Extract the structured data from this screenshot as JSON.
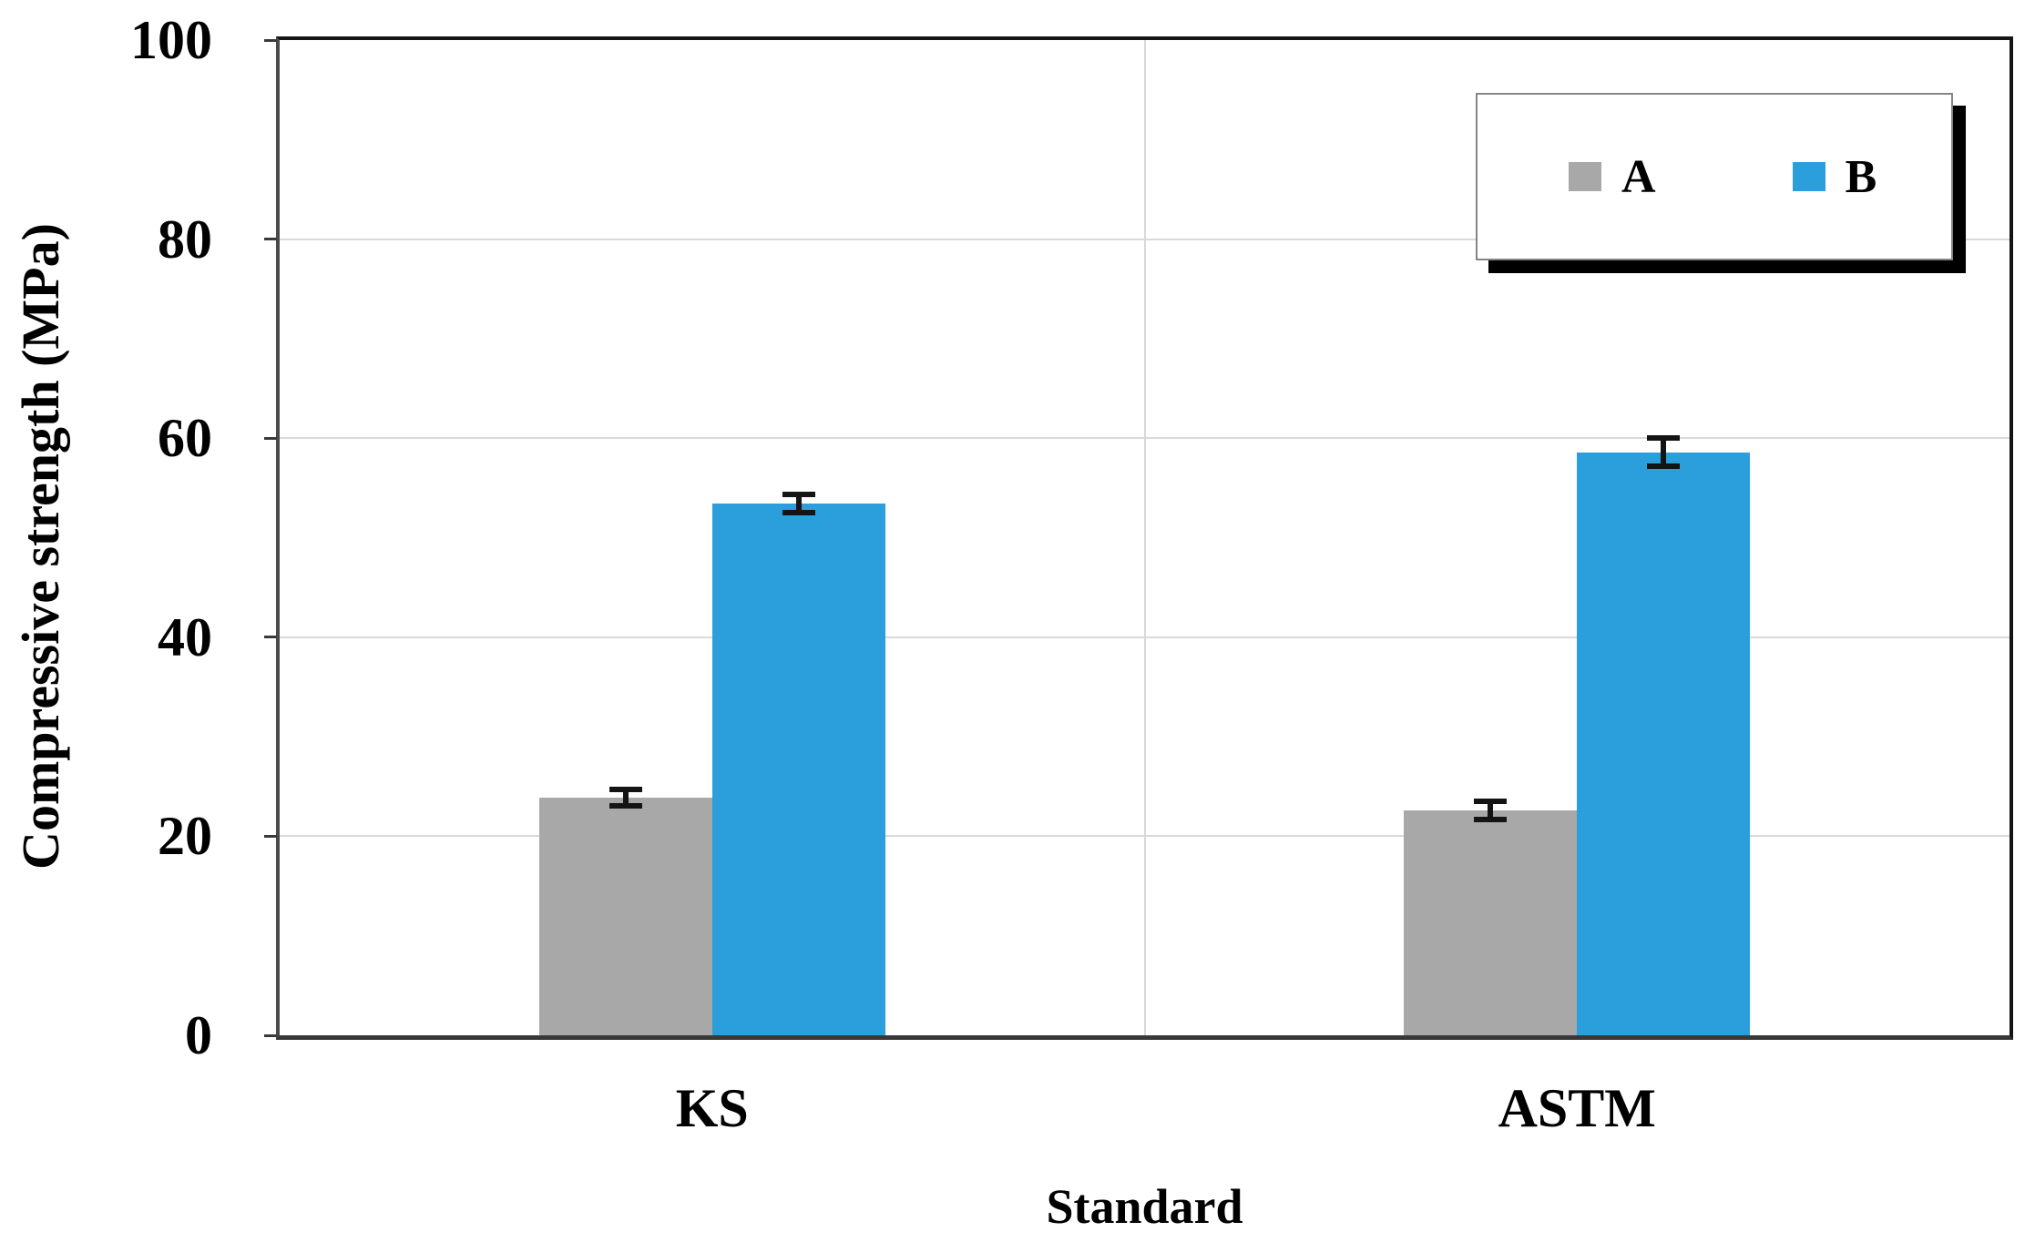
{
  "chart_data": {
    "type": "bar",
    "title": "",
    "xlabel": "Standard",
    "ylabel": "Compressive strength (MPa)",
    "categories": [
      "KS",
      "ASTM"
    ],
    "series": [
      {
        "name": "A",
        "color": "#a8a8a8",
        "values": [
          23.9,
          22.6
        ],
        "errors": [
          1.1,
          1.2
        ]
      },
      {
        "name": "B",
        "color": "#2a9fdb",
        "values": [
          53.4,
          58.6
        ],
        "errors": [
          1.2,
          1.7
        ]
      }
    ],
    "ylim": [
      0,
      100
    ],
    "yticks": [
      0,
      20,
      40,
      60,
      80,
      100
    ],
    "grid": "horizontal gridlines at 20-unit intervals plus vertical category divider",
    "gridline_color": "#d9d9d9",
    "error_bar_color": "#141414",
    "legend_position": "top-right, white box with gray border and black drop shadow",
    "legend_entries": [
      "A",
      "B"
    ]
  }
}
